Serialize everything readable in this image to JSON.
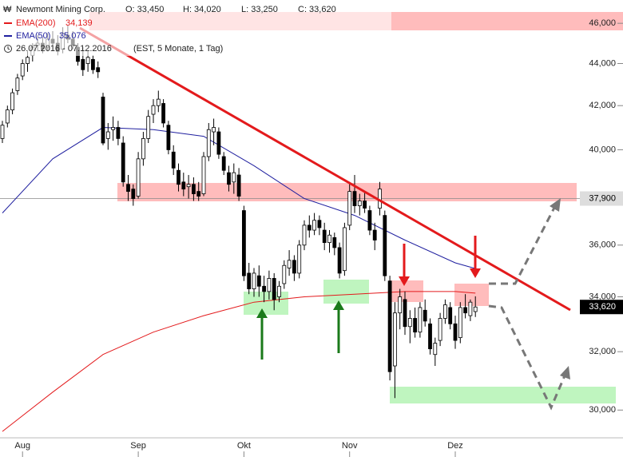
{
  "chart_data": {
    "type": "candlestick",
    "title": "Newmont Mining Corp.",
    "ohlc_header": [
      "O: 33,450",
      "H: 34,020",
      "L: 33,250",
      "C: 33,620"
    ],
    "period": "26.07.2016 - 07.12.2016",
    "period_note": "(EST, 5 Monate, 1 Tag)",
    "log_scale": true,
    "ylim": [
      29.3,
      47.2
    ],
    "yticks": [
      {
        "value": 30,
        "label": "30,000"
      },
      {
        "value": 32,
        "label": "32,000"
      },
      {
        "value": 34,
        "label": "34,000"
      },
      {
        "value": 36,
        "label": "36,000"
      },
      {
        "value": 40,
        "label": "40,000"
      },
      {
        "value": 42,
        "label": "42,000"
      },
      {
        "value": 44,
        "label": "44,000"
      },
      {
        "value": 46,
        "label": "46,000"
      }
    ],
    "categories": [
      null,
      null,
      null,
      null,
      "Aug",
      null,
      null,
      null,
      null,
      null,
      null,
      null,
      null,
      null,
      null,
      null,
      null,
      null,
      null,
      null,
      null,
      null,
      null,
      null,
      null,
      null,
      null,
      "Sep",
      null,
      null,
      null,
      null,
      null,
      null,
      null,
      null,
      null,
      null,
      null,
      null,
      null,
      null,
      null,
      null,
      null,
      null,
      null,
      null,
      "Okt",
      null,
      null,
      null,
      null,
      null,
      null,
      null,
      null,
      null,
      null,
      null,
      null,
      null,
      null,
      null,
      null,
      null,
      null,
      null,
      null,
      "Nov",
      null,
      null,
      null,
      null,
      null,
      null,
      null,
      null,
      null,
      null,
      null,
      null,
      null,
      null,
      null,
      null,
      null,
      null,
      null,
      null,
      "Dez",
      null,
      null,
      null,
      null
    ],
    "candles": {
      "up_color": "#ffffff",
      "down_color": "#000000",
      "open": [
        40.5,
        41.2,
        41.8,
        42.7,
        43.4,
        44.0,
        44.4,
        44.9,
        45.0,
        44.8,
        45.2,
        45.0,
        44.7,
        45.4,
        45.2,
        44.8,
        44.2,
        44.0,
        44.2,
        43.8,
        42.4,
        40.5,
        40.9,
        41.0,
        40.3,
        38.5,
        38.3,
        38.0,
        39.6,
        40.5,
        41.6,
        42.0,
        42.1,
        41.1,
        39.9,
        39.1,
        38.6,
        38.4,
        38.5,
        38.2,
        38.1,
        39.7,
        40.8,
        40.8,
        39.7,
        39.0,
        38.6,
        38.9,
        37.4,
        34.9,
        34.3,
        34.8,
        34.4,
        34.2,
        34.7,
        34.0,
        34.5,
        35.1,
        35.4,
        34.9,
        36.0,
        36.8,
        36.6,
        37.0,
        36.6,
        36.1,
        36.3,
        35.9,
        35.0,
        36.8,
        38.2,
        37.6,
        37.8,
        37.4,
        36.6,
        37.5,
        37.2,
        34.6,
        31.5,
        33.4,
        33.9,
        32.9,
        33.2,
        32.7,
        33.5,
        33.0,
        31.9,
        32.4,
        33.2,
        33.6,
        33.0,
        32.5,
        33.6,
        33.3,
        33.45
      ],
      "high": [
        41.3,
        42.0,
        42.8,
        43.5,
        44.2,
        44.6,
        45.0,
        45.4,
        45.3,
        45.5,
        45.6,
        45.4,
        45.8,
        45.9,
        45.6,
        45.0,
        44.8,
        44.6,
        44.4,
        44.1,
        42.6,
        41.2,
        41.5,
        41.3,
        40.6,
        38.9,
        38.5,
        39.9,
        40.8,
        41.8,
        42.3,
        42.7,
        42.3,
        41.3,
        40.2,
        39.4,
        39.0,
        38.9,
        38.8,
        38.6,
        39.9,
        41.2,
        41.4,
        41.0,
        39.9,
        39.3,
        39.4,
        39.2,
        37.6,
        35.3,
        35.1,
        35.2,
        34.8,
        35.0,
        34.9,
        34.6,
        35.4,
        35.8,
        35.6,
        36.2,
        37.0,
        37.2,
        37.3,
        37.2,
        36.9,
        36.6,
        36.5,
        36.1,
        36.9,
        38.6,
        38.9,
        38.1,
        38.2,
        37.6,
        36.9,
        38.6,
        37.4,
        34.8,
        33.8,
        34.3,
        34.2,
        33.5,
        33.6,
        33.8,
        33.9,
        33.2,
        32.5,
        33.4,
        33.9,
        33.8,
        33.3,
        33.8,
        34.1,
        33.9,
        34.02
      ],
      "low": [
        40.3,
        41.0,
        41.6,
        42.5,
        43.2,
        43.6,
        44.1,
        44.6,
        44.5,
        44.6,
        44.8,
        44.4,
        44.5,
        45.0,
        44.7,
        43.9,
        43.4,
        43.6,
        43.5,
        43.3,
        40.2,
        40.0,
        40.4,
        40.2,
        38.4,
        37.8,
        37.6,
        37.9,
        39.3,
        40.3,
        41.2,
        41.7,
        41.0,
        39.8,
        38.9,
        38.2,
        38.0,
        37.9,
        37.8,
        37.8,
        38.0,
        39.5,
        40.2,
        39.6,
        38.9,
        38.2,
        38.1,
        37.8,
        34.6,
        34.1,
        34.0,
        34.0,
        33.8,
        33.9,
        33.5,
        33.8,
        34.3,
        34.8,
        34.6,
        34.7,
        35.8,
        36.3,
        36.4,
        36.4,
        35.8,
        35.7,
        35.6,
        34.7,
        34.8,
        36.6,
        37.3,
        37.2,
        37.3,
        36.4,
        35.8,
        37.2,
        34.6,
        31.0,
        30.4,
        32.8,
        32.6,
        32.3,
        32.5,
        32.5,
        32.9,
        31.9,
        31.5,
        32.2,
        33.0,
        32.8,
        32.1,
        32.3,
        33.2,
        33.1,
        33.25
      ],
      "close": [
        41.1,
        41.8,
        42.6,
        43.3,
        44.0,
        44.3,
        44.8,
        45.0,
        44.7,
        45.2,
        45.0,
        44.6,
        45.5,
        45.2,
        44.9,
        44.1,
        43.7,
        44.3,
        43.7,
        43.6,
        40.3,
        40.8,
        41.0,
        40.5,
        38.6,
        38.2,
        37.9,
        39.6,
        40.5,
        41.5,
        42.0,
        42.3,
        41.2,
        40.0,
        39.2,
        38.5,
        38.3,
        38.5,
        38.1,
        38.0,
        39.7,
        40.9,
        41.0,
        39.8,
        39.1,
        38.5,
        39.0,
        38.0,
        34.8,
        34.3,
        34.9,
        34.4,
        34.2,
        34.7,
        33.9,
        34.4,
        35.2,
        35.4,
        34.9,
        36.0,
        36.8,
        36.6,
        37.0,
        36.7,
        36.1,
        36.4,
        35.9,
        34.9,
        36.7,
        38.2,
        37.6,
        37.8,
        37.5,
        36.6,
        36.2,
        38.3,
        34.8,
        31.3,
        33.4,
        34.0,
        32.9,
        33.2,
        32.7,
        33.6,
        33.1,
        32.1,
        32.3,
        33.2,
        33.7,
        33.0,
        32.4,
        33.6,
        33.4,
        33.8,
        33.62
      ]
    },
    "lines": [
      {
        "name": "EMA(200)",
        "value_label": "34,139",
        "color": "#e31a1c",
        "x": [
          0,
          10,
          20,
          30,
          40,
          50,
          60,
          70,
          80,
          90,
          94
        ],
        "values": [
          29.3,
          30.6,
          31.9,
          32.7,
          33.3,
          33.8,
          34.0,
          34.1,
          34.2,
          34.2,
          34.14
        ]
      },
      {
        "name": "EMA(50)",
        "value_label": "35,076",
        "color": "#1f1f9f",
        "x": [
          0,
          10,
          20,
          30,
          40,
          50,
          60,
          70,
          80,
          90,
          94
        ],
        "values": [
          37.3,
          39.6,
          41.0,
          40.9,
          40.6,
          39.3,
          37.9,
          37.2,
          36.2,
          35.3,
          35.08
        ]
      }
    ],
    "price_tags": [
      {
        "value": 37.9,
        "label": "37,900",
        "bg": "#dddddd",
        "fg": "#000000"
      },
      {
        "value": 33.62,
        "label": "33,620",
        "bg": "#000000",
        "fg": "#ffffff"
      }
    ]
  }
}
